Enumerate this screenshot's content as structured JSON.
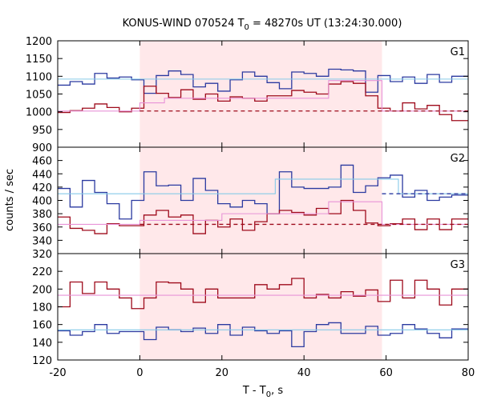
{
  "figure": {
    "title_main": "KONUS-WIND 070524 T",
    "title_sub": "0",
    "title_rest": " = 48270s UT (13:24:30.000)",
    "ylabel": "counts / sec",
    "xlabel_main": "T - T",
    "xlabel_sub": "0",
    "xlabel_rest": ", s",
    "colors": {
      "blue": "#2b3aa0",
      "red": "#9e0a1b",
      "cyan": "#86cae8",
      "pink": "#e893d8",
      "shade": "#ffe8ea",
      "dashed_red": "#9e0a1b",
      "dashed_blue": "#2b3aa0"
    }
  },
  "chart_data": [
    {
      "type": "line",
      "panel": "G1",
      "xlim": [
        -20,
        80
      ],
      "ylim": [
        900,
        1200
      ],
      "xticks": [
        -20,
        0,
        20,
        40,
        60,
        80
      ],
      "yticks": [
        900,
        950,
        1000,
        1050,
        1100,
        1150,
        1200
      ],
      "shaded_interval": [
        0,
        59
      ],
      "series": [
        {
          "color": "blue",
          "step_edges": [
            -20,
            -17,
            -14,
            -11,
            -8,
            -5,
            -2,
            1,
            4,
            7,
            10,
            13,
            16,
            19,
            22,
            25,
            28,
            31,
            34,
            37,
            40,
            43,
            46,
            49,
            52,
            55,
            58,
            61,
            64,
            67,
            70,
            73,
            76,
            80
          ],
          "values": [
            1075,
            1085,
            1078,
            1108,
            1095,
            1098,
            1090,
            1052,
            1102,
            1115,
            1105,
            1070,
            1080,
            1058,
            1090,
            1112,
            1100,
            1082,
            1065,
            1112,
            1108,
            1100,
            1120,
            1118,
            1115,
            1055,
            1102,
            1085,
            1098,
            1080,
            1105,
            1083,
            1100
          ]
        },
        {
          "color": "red",
          "step_edges": [
            -20,
            -17,
            -14,
            -11,
            -8,
            -5,
            -2,
            1,
            4,
            7,
            10,
            13,
            16,
            19,
            22,
            25,
            28,
            31,
            34,
            37,
            40,
            43,
            46,
            49,
            52,
            55,
            58,
            61,
            64,
            67,
            70,
            73,
            76,
            80
          ],
          "values": [
            998,
            1003,
            1010,
            1022,
            1012,
            1000,
            1010,
            1072,
            1052,
            1040,
            1062,
            1035,
            1050,
            1030,
            1042,
            1038,
            1030,
            1045,
            1045,
            1060,
            1055,
            1050,
            1078,
            1085,
            1080,
            1045,
            1010,
            1002,
            1025,
            1008,
            1018,
            992,
            975
          ]
        },
        {
          "color": "cyan",
          "step_edges": [
            -20,
            80
          ],
          "values": [
            1092
          ]
        },
        {
          "color": "pink",
          "step_edges": [
            -20,
            0,
            0,
            6,
            46,
            59,
            80
          ],
          "values": [
            1002,
            1002,
            1025,
            1038,
            1088,
            1002
          ]
        },
        {
          "color": "dashed_red",
          "style": "dashed",
          "step_edges": [
            0,
            80
          ],
          "values": [
            1002
          ]
        }
      ]
    },
    {
      "type": "line",
      "panel": "G2",
      "xlim": [
        -20,
        80
      ],
      "ylim": [
        320,
        480
      ],
      "xticks": [
        -20,
        0,
        20,
        40,
        60,
        80
      ],
      "yticks": [
        320,
        340,
        360,
        380,
        400,
        420,
        440,
        460
      ],
      "shaded_interval": [
        0,
        59
      ],
      "series": [
        {
          "color": "blue",
          "step_edges": [
            -20,
            -17,
            -14,
            -11,
            -8,
            -5,
            -2,
            1,
            4,
            7,
            10,
            13,
            16,
            19,
            22,
            25,
            28,
            31,
            34,
            37,
            40,
            43,
            46,
            49,
            52,
            55,
            58,
            61,
            64,
            67,
            70,
            73,
            76,
            80
          ],
          "values": [
            418,
            390,
            430,
            412,
            395,
            372,
            400,
            443,
            422,
            423,
            400,
            433,
            415,
            395,
            390,
            400,
            395,
            380,
            443,
            420,
            418,
            418,
            420,
            453,
            412,
            422,
            434,
            438,
            405,
            415,
            400,
            405,
            408
          ]
        },
        {
          "color": "red",
          "step_edges": [
            -20,
            -17,
            -14,
            -11,
            -8,
            -5,
            -2,
            1,
            4,
            7,
            10,
            13,
            16,
            19,
            22,
            25,
            28,
            31,
            34,
            37,
            40,
            43,
            46,
            49,
            52,
            55,
            58,
            61,
            64,
            67,
            70,
            73,
            76,
            80
          ],
          "values": [
            375,
            358,
            355,
            350,
            365,
            362,
            362,
            378,
            385,
            375,
            378,
            350,
            370,
            360,
            372,
            355,
            368,
            380,
            385,
            382,
            378,
            388,
            380,
            400,
            385,
            366,
            362,
            365,
            372,
            356,
            372,
            356,
            372
          ]
        },
        {
          "color": "cyan",
          "step_edges": [
            -20,
            33,
            33,
            63,
            80
          ],
          "values": [
            410,
            410,
            432,
            410
          ]
        },
        {
          "color": "pink",
          "step_edges": [
            -20,
            0,
            0,
            20,
            46,
            59,
            80
          ],
          "values": [
            364,
            364,
            370,
            380,
            398,
            364
          ]
        },
        {
          "color": "dashed_red",
          "style": "dashed",
          "step_edges": [
            0,
            80
          ],
          "values": [
            364
          ]
        },
        {
          "color": "dashed_blue",
          "style": "dashed",
          "step_edges": [
            59,
            80
          ],
          "values": [
            410
          ]
        }
      ]
    },
    {
      "type": "line",
      "panel": "G3",
      "xlim": [
        -20,
        80
      ],
      "ylim": [
        120,
        240
      ],
      "xticks": [
        -20,
        0,
        20,
        40,
        60,
        80
      ],
      "yticks": [
        120,
        140,
        160,
        180,
        200,
        220
      ],
      "shaded_interval": [
        0,
        59
      ],
      "series": [
        {
          "color": "red",
          "step_edges": [
            -20,
            -17,
            -14,
            -11,
            -8,
            -5,
            -2,
            1,
            4,
            7,
            10,
            13,
            16,
            19,
            22,
            25,
            28,
            31,
            34,
            37,
            40,
            43,
            46,
            49,
            52,
            55,
            58,
            61,
            64,
            67,
            70,
            73,
            76,
            80
          ],
          "values": [
            180,
            208,
            195,
            208,
            200,
            190,
            178,
            190,
            208,
            207,
            200,
            185,
            200,
            190,
            190,
            190,
            205,
            200,
            205,
            212,
            190,
            194,
            190,
            197,
            192,
            199,
            186,
            210,
            190,
            210,
            200,
            182,
            200
          ]
        },
        {
          "color": "blue",
          "step_edges": [
            -20,
            -17,
            -14,
            -11,
            -8,
            -5,
            -2,
            1,
            4,
            7,
            10,
            13,
            16,
            19,
            22,
            25,
            28,
            31,
            34,
            37,
            40,
            43,
            46,
            49,
            52,
            55,
            58,
            61,
            64,
            67,
            70,
            73,
            76,
            80
          ],
          "values": [
            153,
            148,
            152,
            160,
            150,
            152,
            152,
            143,
            157,
            154,
            152,
            156,
            150,
            160,
            148,
            157,
            153,
            150,
            153,
            135,
            152,
            160,
            162,
            150,
            150,
            158,
            148,
            150,
            160,
            155,
            150,
            145,
            155
          ]
        },
        {
          "color": "cyan",
          "step_edges": [
            -20,
            80
          ],
          "values": [
            154
          ]
        },
        {
          "color": "pink",
          "step_edges": [
            -20,
            80
          ],
          "values": [
            193
          ]
        }
      ]
    }
  ]
}
